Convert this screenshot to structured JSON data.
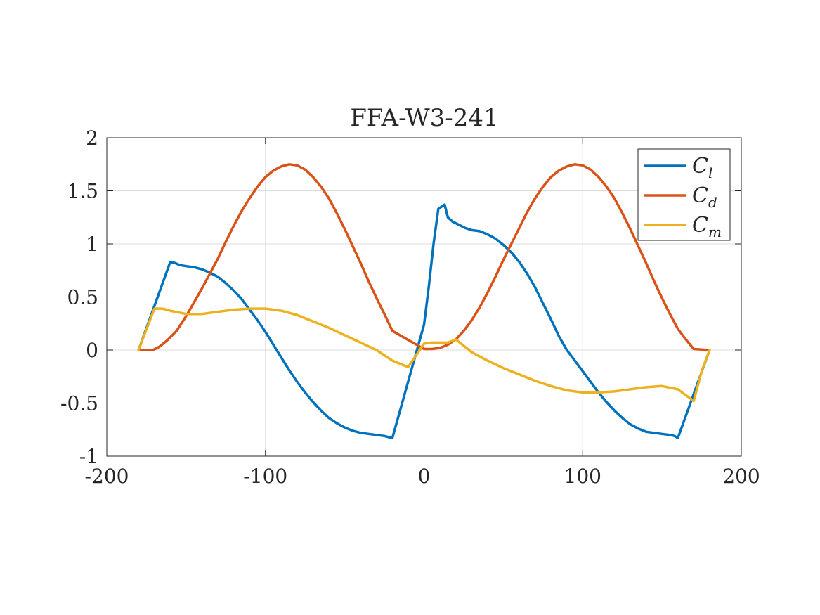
{
  "chart_data": {
    "type": "line",
    "title": "FFA-W3-241",
    "xlabel": "",
    "ylabel": "",
    "xlim": [
      -200,
      200
    ],
    "ylim": [
      -1,
      2
    ],
    "xticks": [
      -200,
      -100,
      0,
      100,
      200
    ],
    "xtick_labels": [
      "-200",
      "-100",
      "0",
      "100",
      "200"
    ],
    "yticks": [
      -1,
      -0.5,
      0,
      0.5,
      1,
      1.5,
      2
    ],
    "ytick_labels": [
      "-1",
      "-0.5",
      "0",
      "0.5",
      "1",
      "1.5",
      "2"
    ],
    "grid": true,
    "legend_position": "top-right",
    "series": [
      {
        "name": "C_l",
        "legend_main": "C",
        "legend_sub": "l",
        "color": "#0072BD",
        "x": [
          -180,
          -160,
          -157,
          -154,
          -150,
          -145,
          -140,
          -135,
          -130,
          -125,
          -120,
          -115,
          -110,
          -105,
          -100,
          -95,
          -90,
          -85,
          -80,
          -75,
          -70,
          -65,
          -60,
          -55,
          -50,
          -45,
          -40,
          -35,
          -30,
          -25,
          -20,
          0,
          3,
          6,
          9,
          12,
          13,
          15,
          18,
          22,
          26,
          30,
          35,
          40,
          45,
          50,
          55,
          60,
          65,
          70,
          75,
          80,
          85,
          90,
          95,
          100,
          105,
          110,
          115,
          120,
          125,
          130,
          135,
          140,
          145,
          150,
          155,
          158,
          160,
          180
        ],
        "y": [
          0,
          0.83,
          0.82,
          0.8,
          0.79,
          0.78,
          0.76,
          0.73,
          0.69,
          0.63,
          0.56,
          0.48,
          0.38,
          0.28,
          0.17,
          0.05,
          -0.07,
          -0.19,
          -0.3,
          -0.4,
          -0.49,
          -0.57,
          -0.64,
          -0.69,
          -0.73,
          -0.76,
          -0.78,
          -0.79,
          -0.8,
          -0.81,
          -0.83,
          0.24,
          0.6,
          1.0,
          1.33,
          1.36,
          1.37,
          1.25,
          1.21,
          1.18,
          1.15,
          1.13,
          1.12,
          1.09,
          1.05,
          0.99,
          0.92,
          0.83,
          0.72,
          0.59,
          0.44,
          0.29,
          0.13,
          0.0,
          -0.1,
          -0.2,
          -0.3,
          -0.4,
          -0.49,
          -0.57,
          -0.64,
          -0.7,
          -0.74,
          -0.77,
          -0.78,
          -0.79,
          -0.8,
          -0.81,
          -0.83,
          0
        ]
      },
      {
        "name": "C_d",
        "legend_main": "C",
        "legend_sub": "d",
        "color": "#D95319",
        "x": [
          -180,
          -171,
          -167,
          -162,
          -156,
          -150,
          -145,
          -140,
          -135,
          -130,
          -125,
          -120,
          -115,
          -110,
          -105,
          -100,
          -95,
          -90,
          -85,
          -80,
          -75,
          -70,
          -65,
          -60,
          -55,
          -50,
          -45,
          -40,
          -35,
          -30,
          -25,
          -20,
          0,
          5,
          10,
          15,
          20,
          25,
          30,
          35,
          40,
          45,
          50,
          55,
          60,
          65,
          70,
          75,
          80,
          85,
          90,
          95,
          100,
          105,
          110,
          115,
          120,
          125,
          130,
          135,
          140,
          145,
          150,
          155,
          160,
          165,
          170,
          180
        ],
        "y": [
          0,
          0,
          0.03,
          0.09,
          0.18,
          0.32,
          0.45,
          0.58,
          0.72,
          0.86,
          1.02,
          1.17,
          1.31,
          1.43,
          1.54,
          1.63,
          1.69,
          1.73,
          1.75,
          1.74,
          1.7,
          1.63,
          1.54,
          1.43,
          1.29,
          1.14,
          0.98,
          0.82,
          0.65,
          0.49,
          0.34,
          0.18,
          0.01,
          0.01,
          0.02,
          0.05,
          0.1,
          0.18,
          0.28,
          0.4,
          0.54,
          0.69,
          0.85,
          1.0,
          1.15,
          1.3,
          1.43,
          1.54,
          1.63,
          1.69,
          1.73,
          1.75,
          1.74,
          1.7,
          1.63,
          1.54,
          1.43,
          1.29,
          1.14,
          0.98,
          0.82,
          0.65,
          0.49,
          0.34,
          0.2,
          0.1,
          0.01,
          0
        ]
      },
      {
        "name": "C_m",
        "legend_main": "C",
        "legend_sub": "m",
        "color": "#EDB120",
        "x": [
          -180,
          -170,
          -165,
          -160,
          -150,
          -140,
          -130,
          -120,
          -110,
          -100,
          -90,
          -80,
          -70,
          -60,
          -50,
          -40,
          -30,
          -20,
          -10,
          0,
          5,
          10,
          15,
          20,
          30,
          40,
          50,
          60,
          70,
          80,
          90,
          100,
          110,
          120,
          130,
          140,
          150,
          160,
          170,
          175,
          180
        ],
        "y": [
          0,
          0.39,
          0.39,
          0.37,
          0.34,
          0.34,
          0.36,
          0.38,
          0.39,
          0.39,
          0.37,
          0.33,
          0.27,
          0.21,
          0.14,
          0.07,
          0.0,
          -0.1,
          -0.16,
          0.06,
          0.07,
          0.07,
          0.07,
          0.1,
          -0.02,
          -0.1,
          -0.17,
          -0.23,
          -0.29,
          -0.34,
          -0.38,
          -0.4,
          -0.4,
          -0.39,
          -0.37,
          -0.35,
          -0.34,
          -0.37,
          -0.48,
          -0.2,
          0
        ]
      }
    ]
  }
}
